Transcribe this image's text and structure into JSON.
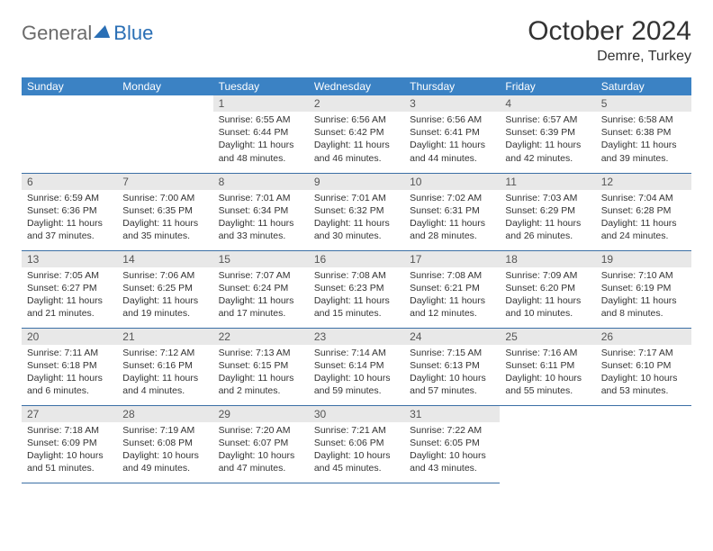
{
  "brand": {
    "part1": "General",
    "part2": "Blue"
  },
  "title": "October 2024",
  "location": "Demre, Turkey",
  "headers": [
    "Sunday",
    "Monday",
    "Tuesday",
    "Wednesday",
    "Thursday",
    "Friday",
    "Saturday"
  ],
  "colors": {
    "header_bg": "#3b82c4",
    "header_fg": "#ffffff",
    "daynum_bg": "#e8e8e8",
    "border": "#3b6fa5",
    "logo_gray": "#6b6b6b",
    "logo_blue": "#2a6fb5"
  },
  "first_weekday": 2,
  "days": [
    {
      "n": 1,
      "sr": "6:55 AM",
      "ss": "6:44 PM",
      "dl": "11 hours and 48 minutes."
    },
    {
      "n": 2,
      "sr": "6:56 AM",
      "ss": "6:42 PM",
      "dl": "11 hours and 46 minutes."
    },
    {
      "n": 3,
      "sr": "6:56 AM",
      "ss": "6:41 PM",
      "dl": "11 hours and 44 minutes."
    },
    {
      "n": 4,
      "sr": "6:57 AM",
      "ss": "6:39 PM",
      "dl": "11 hours and 42 minutes."
    },
    {
      "n": 5,
      "sr": "6:58 AM",
      "ss": "6:38 PM",
      "dl": "11 hours and 39 minutes."
    },
    {
      "n": 6,
      "sr": "6:59 AM",
      "ss": "6:36 PM",
      "dl": "11 hours and 37 minutes."
    },
    {
      "n": 7,
      "sr": "7:00 AM",
      "ss": "6:35 PM",
      "dl": "11 hours and 35 minutes."
    },
    {
      "n": 8,
      "sr": "7:01 AM",
      "ss": "6:34 PM",
      "dl": "11 hours and 33 minutes."
    },
    {
      "n": 9,
      "sr": "7:01 AM",
      "ss": "6:32 PM",
      "dl": "11 hours and 30 minutes."
    },
    {
      "n": 10,
      "sr": "7:02 AM",
      "ss": "6:31 PM",
      "dl": "11 hours and 28 minutes."
    },
    {
      "n": 11,
      "sr": "7:03 AM",
      "ss": "6:29 PM",
      "dl": "11 hours and 26 minutes."
    },
    {
      "n": 12,
      "sr": "7:04 AM",
      "ss": "6:28 PM",
      "dl": "11 hours and 24 minutes."
    },
    {
      "n": 13,
      "sr": "7:05 AM",
      "ss": "6:27 PM",
      "dl": "11 hours and 21 minutes."
    },
    {
      "n": 14,
      "sr": "7:06 AM",
      "ss": "6:25 PM",
      "dl": "11 hours and 19 minutes."
    },
    {
      "n": 15,
      "sr": "7:07 AM",
      "ss": "6:24 PM",
      "dl": "11 hours and 17 minutes."
    },
    {
      "n": 16,
      "sr": "7:08 AM",
      "ss": "6:23 PM",
      "dl": "11 hours and 15 minutes."
    },
    {
      "n": 17,
      "sr": "7:08 AM",
      "ss": "6:21 PM",
      "dl": "11 hours and 12 minutes."
    },
    {
      "n": 18,
      "sr": "7:09 AM",
      "ss": "6:20 PM",
      "dl": "11 hours and 10 minutes."
    },
    {
      "n": 19,
      "sr": "7:10 AM",
      "ss": "6:19 PM",
      "dl": "11 hours and 8 minutes."
    },
    {
      "n": 20,
      "sr": "7:11 AM",
      "ss": "6:18 PM",
      "dl": "11 hours and 6 minutes."
    },
    {
      "n": 21,
      "sr": "7:12 AM",
      "ss": "6:16 PM",
      "dl": "11 hours and 4 minutes."
    },
    {
      "n": 22,
      "sr": "7:13 AM",
      "ss": "6:15 PM",
      "dl": "11 hours and 2 minutes."
    },
    {
      "n": 23,
      "sr": "7:14 AM",
      "ss": "6:14 PM",
      "dl": "10 hours and 59 minutes."
    },
    {
      "n": 24,
      "sr": "7:15 AM",
      "ss": "6:13 PM",
      "dl": "10 hours and 57 minutes."
    },
    {
      "n": 25,
      "sr": "7:16 AM",
      "ss": "6:11 PM",
      "dl": "10 hours and 55 minutes."
    },
    {
      "n": 26,
      "sr": "7:17 AM",
      "ss": "6:10 PM",
      "dl": "10 hours and 53 minutes."
    },
    {
      "n": 27,
      "sr": "7:18 AM",
      "ss": "6:09 PM",
      "dl": "10 hours and 51 minutes."
    },
    {
      "n": 28,
      "sr": "7:19 AM",
      "ss": "6:08 PM",
      "dl": "10 hours and 49 minutes."
    },
    {
      "n": 29,
      "sr": "7:20 AM",
      "ss": "6:07 PM",
      "dl": "10 hours and 47 minutes."
    },
    {
      "n": 30,
      "sr": "7:21 AM",
      "ss": "6:06 PM",
      "dl": "10 hours and 45 minutes."
    },
    {
      "n": 31,
      "sr": "7:22 AM",
      "ss": "6:05 PM",
      "dl": "10 hours and 43 minutes."
    }
  ],
  "labels": {
    "sunrise": "Sunrise:",
    "sunset": "Sunset:",
    "daylight": "Daylight:"
  }
}
